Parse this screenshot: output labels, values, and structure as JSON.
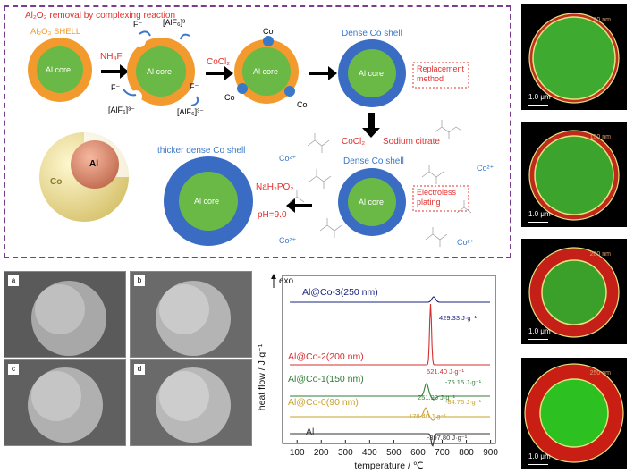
{
  "schematic": {
    "title": "Al₂O₃ removal by complexing reaction",
    "shell_label": "Al₂O₃ SHELL",
    "core_label": "Al core",
    "reagent_nh4f": "NH₄F",
    "reagent_cocl2": "CoCl₂",
    "fluoride_f": "F⁻",
    "complex_alf6": "[AlF₆]³⁻",
    "co_label": "Co",
    "dense_shell": "Dense Co shell",
    "replacement": "Replacement method",
    "cocl2_2": "CoCl₂",
    "sodium_citrate": "Sodium citrate",
    "dense_shell_2": "Dense Co shell",
    "electroless": "Electroless plating",
    "thicker_shell": "thicker dense Co shell",
    "nah2po2": "NaH₂PO₂",
    "ph": "pH=9.0",
    "co2_ion": "Co²⁺",
    "sphere_co": "Co",
    "sphere_al": "Al"
  },
  "sem": {
    "panels": [
      {
        "tag": "a"
      },
      {
        "tag": "b"
      },
      {
        "tag": "c"
      },
      {
        "tag": "d"
      }
    ]
  },
  "tem": {
    "panels": [
      {
        "label": "90 nm",
        "scale": "1.0 μm"
      },
      {
        "label": "150 nm",
        "scale": "1.0 μm"
      },
      {
        "label": "200 nm",
        "scale": "1.0 μm"
      },
      {
        "label": "250 nm",
        "scale": "1.0 μm"
      }
    ]
  },
  "chart_data": {
    "type": "line",
    "xlabel": "temperature / ℃",
    "ylabel": "heat flow / J·g⁻¹",
    "exo_label": "exo",
    "xlim": [
      40,
      920
    ],
    "xticks": [
      100,
      200,
      300,
      400,
      500,
      600,
      700,
      800,
      900
    ],
    "series": [
      {
        "name": "Al@Co-3(250 nm)",
        "color": "#1a237e",
        "peak_x": 665,
        "baseline": 0,
        "peak": 6,
        "annotation": "429.33 J·g⁻¹"
      },
      {
        "name": "Al@Co-2(200 nm)",
        "color": "#d32f2f",
        "peak_x": 652,
        "baseline": 0,
        "peak": 68,
        "annotation": "521.40 J·g⁻¹"
      },
      {
        "name": "Al@Co-1(150 nm)",
        "color": "#2e7d32",
        "peak_x": 635,
        "baseline": 0,
        "peak": 14,
        "annotation": "251.90 J·g⁻¹",
        "annotation2": "-75.15 J·g⁻¹"
      },
      {
        "name": "Al@Co-0(90 nm)",
        "color": "#c8a02a",
        "peak_x": 632,
        "baseline": 0,
        "peak": 10,
        "annotation": "178.40 J·g⁻¹",
        "annotation2": "-84.76 J·g⁻¹"
      },
      {
        "name": "Al",
        "color": "#333333",
        "peak_x": 660,
        "baseline": 0,
        "peak": -14,
        "annotation": "-397.80 J·g⁻¹"
      }
    ]
  }
}
